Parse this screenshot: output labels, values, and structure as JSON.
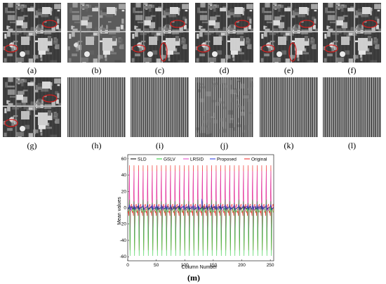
{
  "figure": {
    "panels": [
      {
        "id": "a",
        "label": "(a)",
        "kind": "aerial",
        "circles": 2
      },
      {
        "id": "b",
        "label": "(b)",
        "kind": "aerial-clean",
        "circles": 0
      },
      {
        "id": "c",
        "label": "(c)",
        "kind": "aerial",
        "circles": 3
      },
      {
        "id": "d",
        "label": "(d)",
        "kind": "aerial",
        "circles": 2
      },
      {
        "id": "e",
        "label": "(e)",
        "kind": "aerial",
        "circles": 3
      },
      {
        "id": "f",
        "label": "(f)",
        "kind": "aerial",
        "circles": 2
      },
      {
        "id": "g",
        "label": "(g)",
        "kind": "aerial",
        "circles": 2
      },
      {
        "id": "h",
        "label": "(h)",
        "kind": "stripes",
        "circles": 0
      },
      {
        "id": "i",
        "label": "(i)",
        "kind": "stripes",
        "circles": 0
      },
      {
        "id": "j",
        "label": "(j)",
        "kind": "stripes-noisy",
        "circles": 0
      },
      {
        "id": "k",
        "label": "(k)",
        "kind": "stripes",
        "circles": 0
      },
      {
        "id": "l",
        "label": "(l)",
        "kind": "stripes",
        "circles": 0
      }
    ],
    "m_label": "(m)",
    "annotation_color": "#d21f1f"
  },
  "chart_data": {
    "type": "line",
    "xlabel": "Column Number",
    "ylabel": "Mean values",
    "xlim": [
      0,
      256
    ],
    "ylim": [
      -65,
      65
    ],
    "xticks": [
      0,
      50,
      100,
      150,
      200,
      250
    ],
    "yticks": [
      -60,
      -40,
      -20,
      0,
      20,
      40,
      60
    ],
    "grid": false,
    "legend_position": "top",
    "pattern": {
      "spike_columns": [
        3,
        11,
        19,
        27,
        35,
        43,
        51,
        59,
        67,
        75,
        83,
        91,
        99,
        107,
        115,
        123,
        131,
        139,
        147,
        155,
        163,
        171,
        179,
        187,
        195,
        203,
        211,
        219,
        227,
        235,
        243,
        251
      ],
      "original_high": 52,
      "original_low": -52,
      "gslv_high": 10,
      "gslv_low": -58
    },
    "series": [
      {
        "name": "SLD",
        "color": "#000000"
      },
      {
        "name": "GSLV",
        "color": "#22c832"
      },
      {
        "name": "LRSID",
        "color": "#e040c8"
      },
      {
        "name": "Proposed",
        "color": "#2030e0"
      },
      {
        "name": "Original",
        "color": "#ee2222"
      }
    ]
  }
}
